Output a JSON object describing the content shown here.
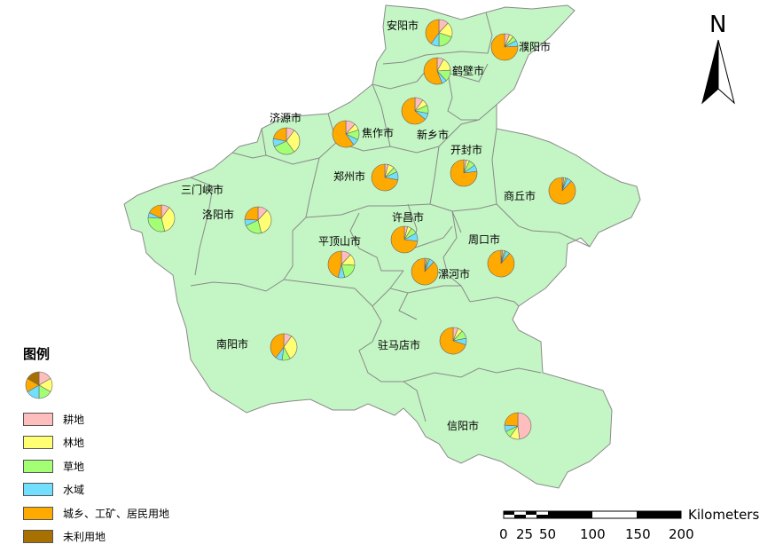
{
  "legend": {
    "title": "图例",
    "items": [
      {
        "label": "耕地",
        "color": "#ffbebe"
      },
      {
        "label": "林地",
        "color": "#ffff73"
      },
      {
        "label": "草地",
        "color": "#a3ff73"
      },
      {
        "label": "水域",
        "color": "#73dfff"
      },
      {
        "label": "城乡、工矿、居民用地",
        "color": "#ffaa00"
      },
      {
        "label": "未利用地",
        "color": "#a87000"
      }
    ]
  },
  "north_arrow": {
    "label": "N"
  },
  "scale_bar": {
    "unit": "Kilometers",
    "ticks": [
      "0",
      "25",
      "50",
      "100",
      "150",
      "200"
    ]
  },
  "colors": {
    "province_fill": "#c4f5c4",
    "boundary": "#8a8a8a"
  },
  "cities": [
    {
      "name": "安阳市",
      "values": [
        12,
        18,
        20,
        10,
        40,
        0
      ]
    },
    {
      "name": "濮阳市",
      "values": [
        6,
        5,
        6,
        7,
        76,
        0
      ]
    },
    {
      "name": "鹤壁市",
      "values": [
        8,
        16,
        14,
        6,
        56,
        0
      ]
    },
    {
      "name": "新乡市",
      "values": [
        10,
        8,
        10,
        8,
        64,
        0
      ]
    },
    {
      "name": "济源市",
      "values": [
        10,
        30,
        28,
        10,
        22,
        0
      ]
    },
    {
      "name": "焦作市",
      "values": [
        12,
        8,
        12,
        8,
        60,
        0
      ]
    },
    {
      "name": "开封市",
      "values": [
        3,
        4,
        8,
        8,
        77,
        0
      ]
    },
    {
      "name": "郑州市",
      "values": [
        4,
        8,
        6,
        10,
        72,
        0
      ]
    },
    {
      "name": "商丘市",
      "values": [
        2,
        2,
        2,
        6,
        88,
        0
      ]
    },
    {
      "name": "三门峡市",
      "values": [
        10,
        36,
        30,
        6,
        18,
        0
      ]
    },
    {
      "name": "洛阳市",
      "values": [
        12,
        34,
        22,
        8,
        24,
        0
      ]
    },
    {
      "name": "许昌市",
      "values": [
        4,
        5,
        8,
        10,
        73,
        0
      ]
    },
    {
      "name": "周口市",
      "values": [
        2,
        2,
        2,
        5,
        89,
        0
      ]
    },
    {
      "name": "平顶山市",
      "values": [
        12,
        14,
        20,
        8,
        46,
        0
      ]
    },
    {
      "name": "漯河市",
      "values": [
        2,
        2,
        2,
        6,
        88,
        0
      ]
    },
    {
      "name": "南阳市",
      "values": [
        10,
        32,
        10,
        8,
        40,
        0
      ]
    },
    {
      "name": "驻马店市",
      "values": [
        6,
        6,
        10,
        8,
        70,
        0
      ]
    },
    {
      "name": "信阳市",
      "values": [
        48,
        12,
        8,
        8,
        24,
        0
      ]
    }
  ]
}
